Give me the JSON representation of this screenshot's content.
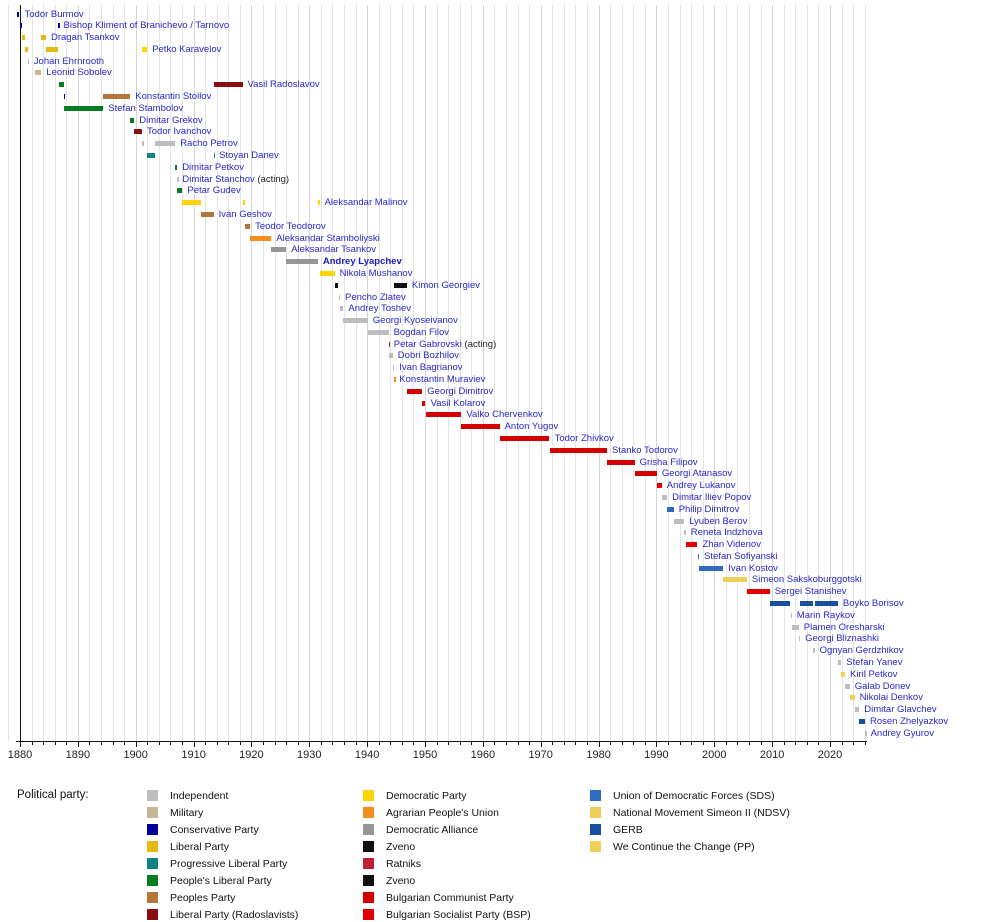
{
  "legend": {
    "title": "Political party:",
    "columns": [
      [
        {
          "label": "Independent",
          "party": "independent"
        },
        {
          "label": "Military",
          "party": "military"
        },
        {
          "label": "Conservative Party",
          "party": "conservative"
        },
        {
          "label": "Liberal Party",
          "party": "liberal"
        },
        {
          "label": "Progressive Liberal Party",
          "party": "progressive_liberal"
        },
        {
          "label": "People's Liberal Party",
          "party": "peoples_liberal"
        },
        {
          "label": "Peoples Party",
          "party": "peoples_party"
        },
        {
          "label": "Liberal Party (Radoslavists)",
          "party": "radoslavist"
        }
      ],
      [
        {
          "label": "Democratic Party",
          "party": "democratic"
        },
        {
          "label": "Agrarian People's Union",
          "party": "agrarian"
        },
        {
          "label": "Democratic Alliance",
          "party": "dem_alliance"
        },
        {
          "label": "Zveno",
          "party": "zveno"
        },
        {
          "label": "Ratniks",
          "party": "ratniks"
        },
        {
          "label": "Zveno",
          "party": "zveno"
        },
        {
          "label": "Bulgarian Communist Party",
          "party": "communist"
        },
        {
          "label": "Bulgarian Socialist Party (BSP)",
          "party": "bsp"
        }
      ],
      [
        {
          "label": "Union of Democratic Forces (SDS)",
          "party": "sds"
        },
        {
          "label": "National Movement Simeon II (NDSV)",
          "party": "ndsv"
        },
        {
          "label": "GERB",
          "party": "gerb"
        },
        {
          "label": "We Continue the Change (PP)",
          "party": "pp"
        }
      ]
    ]
  },
  "chart_data": {
    "type": "timeline",
    "title": "",
    "axis": {
      "year_min": 1878,
      "year_max": 2026,
      "minor_step": 2,
      "decade_labels": [
        "1880",
        "1890",
        "1900",
        "1910",
        "1920",
        "1930",
        "1940",
        "1950",
        "1960",
        "1970",
        "1980",
        "1990",
        "2000",
        "2010",
        "2020"
      ],
      "axis_year_zero": 1880,
      "grid": true
    },
    "parties": {
      "independent": "#bdbdbd",
      "military": "#c7b695",
      "conservative": "#000099",
      "liberal": "#e4ba10",
      "progressive_liberal": "#0f8482",
      "peoples_liberal": "#077d21",
      "peoples_party": "#b5763b",
      "radoslavist": "#8b0e13",
      "democratic": "#ffd403",
      "agrarian": "#f68c1e",
      "dem_alliance": "#969696",
      "zveno": "#101010",
      "ratniks": "#bf2033",
      "communist": "#d40000",
      "bsp": "#e30000",
      "sds": "#2f6bbf",
      "ndsv": "#efce58",
      "gerb": "#14509e",
      "pp": "#efd058"
    },
    "people": [
      {
        "name": "Todor Burmov",
        "segments": [
          {
            "party": "conservative",
            "start": 1879.54,
            "end": 1879.92
          }
        ]
      },
      {
        "name": "Bishop Kliment of Branichevo / Tarnovo",
        "segments": [
          {
            "party": "conservative",
            "start": 1879.92,
            "end": 1880.27
          },
          {
            "party": "conservative",
            "start": 1886.6,
            "end": 1886.66
          }
        ]
      },
      {
        "name": "Dragan Tsankov",
        "segments": [
          {
            "party": "liberal",
            "start": 1880.27,
            "end": 1880.92
          },
          {
            "party": "liberal",
            "start": 1883.69,
            "end": 1884.49
          }
        ]
      },
      {
        "name": "Petko Karavelov",
        "segments": [
          {
            "party": "liberal",
            "start": 1880.92,
            "end": 1881.37
          },
          {
            "party": "liberal",
            "start": 1884.49,
            "end": 1886.6
          },
          {
            "party": "democratic",
            "start": 1901.12,
            "end": 1901.98
          }
        ]
      },
      {
        "name": "Johan Ehrnrooth",
        "segments": [
          {
            "party": "military",
            "start": 1881.37,
            "end": 1881.52
          }
        ]
      },
      {
        "name": "Leonid Sobolev",
        "segments": [
          {
            "party": "military",
            "start": 1882.5,
            "end": 1883.69
          }
        ]
      },
      {
        "name": "Vasil Radoslavov",
        "segments": [
          {
            "party": "peoples_liberal",
            "start": 1886.66,
            "end": 1887.52
          },
          {
            "party": "radoslavist",
            "start": 1913.54,
            "end": 1918.46
          }
        ]
      },
      {
        "name": "Konstantin Stoilov",
        "segments": [
          {
            "party": "conservative",
            "start": 1887.52,
            "end": 1887.67
          },
          {
            "party": "peoples_party",
            "start": 1894.39,
            "end": 1899.07
          }
        ]
      },
      {
        "name": "Stefan Stambolov",
        "segments": [
          {
            "party": "peoples_liberal",
            "start": 1887.67,
            "end": 1894.39
          }
        ]
      },
      {
        "name": "Dimitar Grekov",
        "segments": [
          {
            "party": "peoples_liberal",
            "start": 1899.07,
            "end": 1899.76
          }
        ]
      },
      {
        "name": "Todor Ivanchov",
        "segments": [
          {
            "party": "radoslavist",
            "start": 1899.76,
            "end": 1901.08
          }
        ]
      },
      {
        "name": "Racho Petrov",
        "segments": [
          {
            "party": "independent",
            "start": 1901.08,
            "end": 1901.12
          },
          {
            "party": "independent",
            "start": 1903.36,
            "end": 1906.83
          }
        ]
      },
      {
        "name": "Stoyan Danev",
        "segments": [
          {
            "party": "progressive_liberal",
            "start": 1901.98,
            "end": 1903.36
          },
          {
            "party": "progressive_liberal",
            "start": 1913.46,
            "end": 1913.54
          }
        ]
      },
      {
        "name": "Dimitar Petkov",
        "segments": [
          {
            "party": "peoples_liberal",
            "start": 1906.83,
            "end": 1907.17
          }
        ]
      },
      {
        "name": "Dimitar Stanchov",
        "suffix": " (acting)",
        "segments": [
          {
            "party": "independent",
            "start": 1907.17,
            "end": 1907.21
          }
        ]
      },
      {
        "name": "Petar Gudev",
        "segments": [
          {
            "party": "peoples_liberal",
            "start": 1907.21,
            "end": 1908.07
          }
        ]
      },
      {
        "name": "Aleksandar Malinov",
        "segments": [
          {
            "party": "democratic",
            "start": 1908.07,
            "end": 1911.22
          },
          {
            "party": "democratic",
            "start": 1918.46,
            "end": 1918.9
          },
          {
            "party": "democratic",
            "start": 1931.49,
            "end": 1931.79
          }
        ]
      },
      {
        "name": "Ivan Geshov",
        "segments": [
          {
            "party": "peoples_party",
            "start": 1911.22,
            "end": 1913.46
          }
        ]
      },
      {
        "name": "Teodor Teodorov",
        "segments": [
          {
            "party": "peoples_party",
            "start": 1918.9,
            "end": 1919.77
          }
        ]
      },
      {
        "name": "Aleksandar Stamboliyski",
        "segments": [
          {
            "party": "agrarian",
            "start": 1919.77,
            "end": 1923.44
          }
        ]
      },
      {
        "name": "Aleksandar Tsankov",
        "segments": [
          {
            "party": "dem_alliance",
            "start": 1923.44,
            "end": 1926.01
          }
        ]
      },
      {
        "name": "Andrey Lyapchev",
        "bold": true,
        "segments": [
          {
            "party": "dem_alliance",
            "start": 1926.01,
            "end": 1931.49
          }
        ]
      },
      {
        "name": "Nikola Mushanov",
        "segments": [
          {
            "party": "democratic",
            "start": 1931.79,
            "end": 1934.38
          }
        ]
      },
      {
        "name": "Kimon Georgiev",
        "segments": [
          {
            "party": "zveno",
            "start": 1934.38,
            "end": 1935.06
          },
          {
            "party": "zveno",
            "start": 1944.68,
            "end": 1946.88
          }
        ]
      },
      {
        "name": "Pencho Zlatev",
        "segments": [
          {
            "party": "military",
            "start": 1935.06,
            "end": 1935.31
          }
        ]
      },
      {
        "name": "Andrey Toshev",
        "segments": [
          {
            "party": "independent",
            "start": 1935.31,
            "end": 1935.89
          }
        ]
      },
      {
        "name": "Georgi Kyoseivanov",
        "segments": [
          {
            "party": "independent",
            "start": 1935.89,
            "end": 1940.12
          }
        ]
      },
      {
        "name": "Bogdan Filov",
        "segments": [
          {
            "party": "independent",
            "start": 1940.12,
            "end": 1943.71
          }
        ]
      },
      {
        "name": "Petar Gabrovski",
        "suffix": " (acting)",
        "segments": [
          {
            "party": "ratniks",
            "start": 1943.71,
            "end": 1943.74
          }
        ]
      },
      {
        "name": "Dobri Bozhilov",
        "segments": [
          {
            "party": "independent",
            "start": 1943.74,
            "end": 1944.43
          }
        ]
      },
      {
        "name": "Ivan Bagrianov",
        "segments": [
          {
            "party": "independent",
            "start": 1944.43,
            "end": 1944.67
          }
        ]
      },
      {
        "name": "Konstantin Muraviev",
        "segments": [
          {
            "party": "agrarian",
            "start": 1944.67,
            "end": 1944.69
          }
        ]
      },
      {
        "name": "Georgi Dimitrov",
        "segments": [
          {
            "party": "communist",
            "start": 1946.88,
            "end": 1949.54
          }
        ]
      },
      {
        "name": "Vasil Kolarov",
        "segments": [
          {
            "party": "communist",
            "start": 1949.54,
            "end": 1950.1
          }
        ]
      },
      {
        "name": "Valko Chervenkov",
        "segments": [
          {
            "party": "communist",
            "start": 1950.1,
            "end": 1956.29
          }
        ]
      },
      {
        "name": "Anton Yugov",
        "segments": [
          {
            "party": "communist",
            "start": 1956.29,
            "end": 1962.9
          }
        ]
      },
      {
        "name": "Todor Zhivkov",
        "segments": [
          {
            "party": "communist",
            "start": 1962.9,
            "end": 1971.53
          }
        ]
      },
      {
        "name": "Stanko Todorov",
        "segments": [
          {
            "party": "communist",
            "start": 1971.53,
            "end": 1981.45
          }
        ]
      },
      {
        "name": "Grisha Filipov",
        "segments": [
          {
            "party": "communist",
            "start": 1981.45,
            "end": 1986.22
          }
        ]
      },
      {
        "name": "Georgi Atanasov",
        "segments": [
          {
            "party": "communist",
            "start": 1986.22,
            "end": 1990.09
          }
        ]
      },
      {
        "name": "Andrey Lukanov",
        "segments": [
          {
            "party": "bsp",
            "start": 1990.09,
            "end": 1990.93
          }
        ]
      },
      {
        "name": "Dimitar Iliev Popov",
        "segments": [
          {
            "party": "independent",
            "start": 1990.93,
            "end": 1991.85
          }
        ]
      },
      {
        "name": "Philip Dimitrov",
        "segments": [
          {
            "party": "sds",
            "start": 1991.85,
            "end": 1992.99
          }
        ]
      },
      {
        "name": "Lyuben Berov",
        "segments": [
          {
            "party": "independent",
            "start": 1992.99,
            "end": 1994.78
          }
        ]
      },
      {
        "name": "Reneta Indzhova",
        "segments": [
          {
            "party": "independent",
            "start": 1994.78,
            "end": 1995.07
          }
        ]
      },
      {
        "name": "Zhan Videnov",
        "segments": [
          {
            "party": "bsp",
            "start": 1995.07,
            "end": 1997.1
          }
        ]
      },
      {
        "name": "Stefan Sofiyanski",
        "segments": [
          {
            "party": "sds",
            "start": 1997.1,
            "end": 1997.38
          }
        ]
      },
      {
        "name": "Ivan Kostov",
        "segments": [
          {
            "party": "sds",
            "start": 1997.38,
            "end": 2001.56
          }
        ]
      },
      {
        "name": "Simeon Sakskoburggotski",
        "segments": [
          {
            "party": "ndsv",
            "start": 2001.56,
            "end": 2005.63
          }
        ]
      },
      {
        "name": "Sergei Stanishev",
        "segments": [
          {
            "party": "bsp",
            "start": 2005.63,
            "end": 2009.57
          }
        ]
      },
      {
        "name": "Boyko Borisov",
        "segments": [
          {
            "party": "gerb",
            "start": 2009.57,
            "end": 2013.17
          },
          {
            "party": "gerb",
            "start": 2014.84,
            "end": 2017.07
          },
          {
            "party": "gerb",
            "start": 2017.34,
            "end": 2021.37
          }
        ]
      },
      {
        "name": "Marin Raykov",
        "segments": [
          {
            "party": "independent",
            "start": 2013.17,
            "end": 2013.4
          }
        ]
      },
      {
        "name": "Plamen Oresharski",
        "segments": [
          {
            "party": "independent",
            "start": 2013.4,
            "end": 2014.6
          }
        ]
      },
      {
        "name": "Georgi Bliznashki",
        "segments": [
          {
            "party": "independent",
            "start": 2014.6,
            "end": 2014.84
          }
        ]
      },
      {
        "name": "Ognyan Gerdzhikov",
        "segments": [
          {
            "party": "independent",
            "start": 2017.07,
            "end": 2017.34
          }
        ]
      },
      {
        "name": "Stefan Yanev",
        "segments": [
          {
            "party": "independent",
            "start": 2021.37,
            "end": 2021.95
          }
        ]
      },
      {
        "name": "Kiril Petkov",
        "segments": [
          {
            "party": "pp",
            "start": 2021.95,
            "end": 2022.6
          }
        ]
      },
      {
        "name": "Galab Donev",
        "segments": [
          {
            "party": "independent",
            "start": 2022.6,
            "end": 2023.43
          }
        ]
      },
      {
        "name": "Nikolai Denkov",
        "segments": [
          {
            "party": "pp",
            "start": 2023.43,
            "end": 2024.26
          }
        ]
      },
      {
        "name": "Dimitar Glavchev",
        "segments": [
          {
            "party": "independent",
            "start": 2024.26,
            "end": 2025.06
          }
        ]
      },
      {
        "name": "Rosen Zhelyazkov",
        "segments": [
          {
            "party": "gerb",
            "start": 2025.06,
            "end": 2026.05
          }
        ]
      },
      {
        "name": "Andrey Gyurov",
        "segments": [
          {
            "party": "independent",
            "start": 2026.05,
            "end": 2026.15
          }
        ]
      }
    ]
  }
}
